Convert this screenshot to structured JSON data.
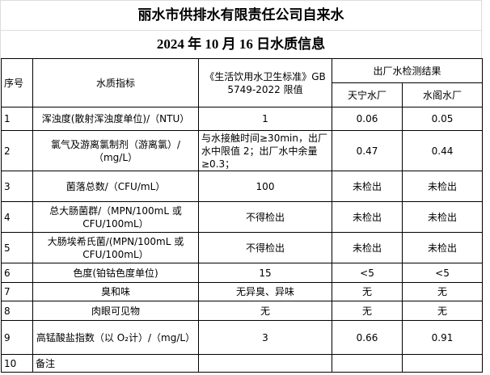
{
  "header": {
    "title": "丽水市供排水有限责任公司自来水",
    "subtitle": "2024 年 10 月 16 日水质信息"
  },
  "table": {
    "columns": [
      "序号",
      "水质指标",
      "《生活饮用水卫生标准》GB 5749-2022 限值",
      "出厂水检测结果"
    ],
    "sub_columns": [
      "天宁水厂",
      "水阁水厂"
    ],
    "rows": [
      [
        "1",
        "浑浊度(散射浑浊度单位)/（NTU）",
        "1",
        "0.06",
        "0.05"
      ],
      [
        "2",
        "氯气及游离氯制剂（游离氯）/（mg/L）",
        "与水接触时间≥30min，出厂水中限值 2；出厂水中余量≥0.3；",
        "0.47",
        "0.44"
      ],
      [
        "3",
        "菌落总数/（CFU/mL）",
        "100",
        "未检出",
        "未检出"
      ],
      [
        "4",
        "总大肠菌群/（MPN/100mL 或 CFU/100mL）",
        "不得检出",
        "未检出",
        "未检出"
      ],
      [
        "5",
        "大肠埃希氏菌/(MPN/100mL 或 CFU/100mL）",
        "不得检出",
        "未检出",
        "未检出"
      ],
      [
        "6",
        "色度(铂钴色度单位)",
        "15",
        "<5",
        "<5"
      ],
      [
        "7",
        "臭和味",
        "无异臭、异味",
        "无",
        "无"
      ],
      [
        "8",
        "肉眼可见物",
        "无",
        "无",
        "无"
      ],
      [
        "9",
        "高锰酸盐指数（以 O₂计）/（mg/L）",
        "3",
        "0.66",
        "0.91"
      ],
      [
        "10",
        "备注"
      ]
    ]
  }
}
